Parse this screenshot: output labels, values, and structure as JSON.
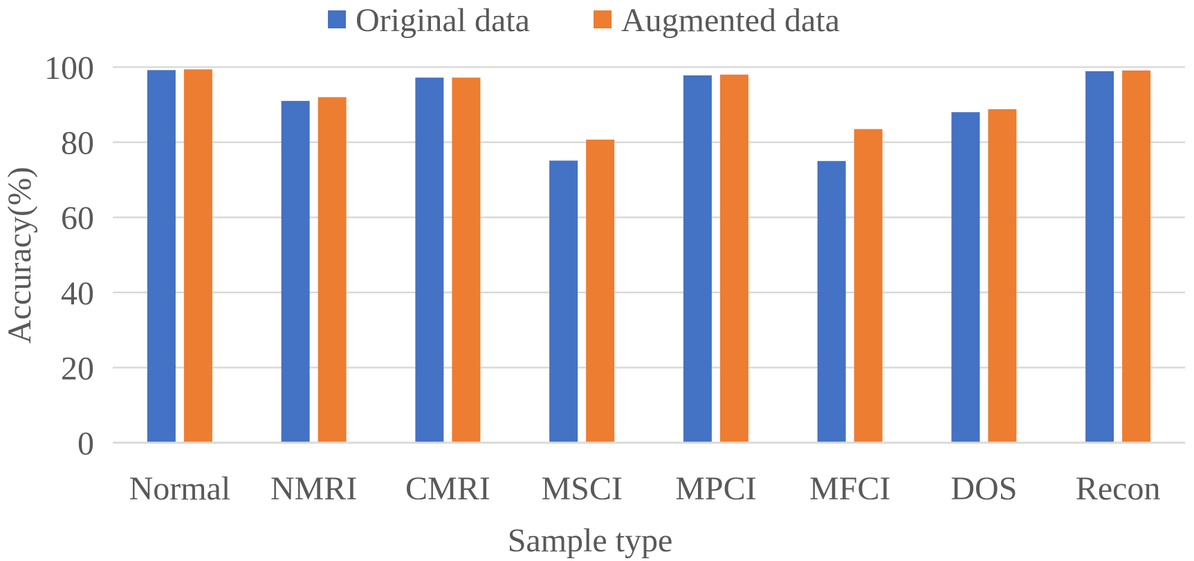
{
  "chart_data": {
    "type": "bar",
    "title": "",
    "xlabel": "Sample type",
    "ylabel": "Accuracy(%)",
    "ylim": [
      0,
      100
    ],
    "yticks": [
      0,
      20,
      40,
      60,
      80,
      100
    ],
    "grid": true,
    "legend_position": "top-center",
    "categories": [
      "Normal",
      "NMRI",
      "CMRI",
      "MSCI",
      "MPCI",
      "MFCI",
      "DOS",
      "Recon"
    ],
    "series": [
      {
        "name": "Original data",
        "color": "#4472C4",
        "values": [
          99.2,
          91.0,
          97.2,
          75.1,
          97.8,
          75.0,
          88.0,
          98.9
        ]
      },
      {
        "name": "Augmented data",
        "color": "#ED7D31",
        "values": [
          99.4,
          92.0,
          97.2,
          80.7,
          98.0,
          83.5,
          88.8,
          99.1
        ]
      }
    ]
  }
}
